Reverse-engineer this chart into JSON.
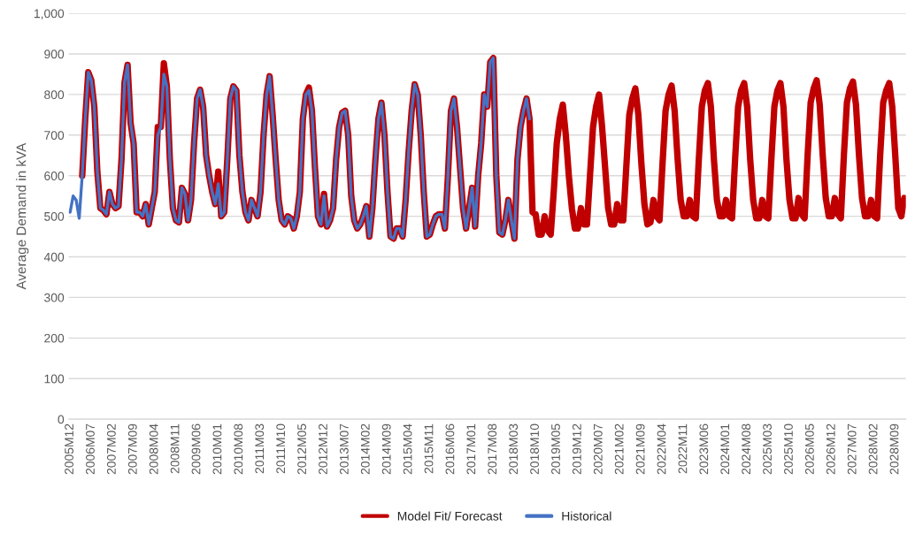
{
  "chart_data": {
    "type": "line",
    "ylabel": "Average Demand in kVA",
    "categories": [
      "2005M12",
      null,
      null,
      null,
      null,
      null,
      null,
      "2006M07",
      null,
      null,
      null,
      null,
      null,
      null,
      "2007M02",
      null,
      null,
      null,
      null,
      null,
      null,
      "2007M09",
      null,
      null,
      null,
      null,
      null,
      null,
      "2008M04",
      null,
      null,
      null,
      null,
      null,
      null,
      "2008M11",
      null,
      null,
      null,
      null,
      null,
      null,
      "2009M06",
      null,
      null,
      null,
      null,
      null,
      null,
      "2010M01",
      null,
      null,
      null,
      null,
      null,
      null,
      "2010M08",
      null,
      null,
      null,
      null,
      null,
      null,
      "2011M03",
      null,
      null,
      null,
      null,
      null,
      null,
      "2011M10",
      null,
      null,
      null,
      null,
      null,
      null,
      "2012M05",
      null,
      null,
      null,
      null,
      null,
      null,
      "2012M12",
      null,
      null,
      null,
      null,
      null,
      null,
      "2013M07",
      null,
      null,
      null,
      null,
      null,
      null,
      "2014M02",
      null,
      null,
      null,
      null,
      null,
      null,
      "2014M09",
      null,
      null,
      null,
      null,
      null,
      null,
      "2015M04",
      null,
      null,
      null,
      null,
      null,
      null,
      "2015M11",
      null,
      null,
      null,
      null,
      null,
      null,
      "2016M06",
      null,
      null,
      null,
      null,
      null,
      null,
      "2017M01",
      null,
      null,
      null,
      null,
      null,
      null,
      "2017M08",
      null,
      null,
      null,
      null,
      null,
      null,
      "2018M03",
      null,
      null,
      null,
      null,
      null,
      null,
      "2018M10",
      null,
      null,
      null,
      null,
      null,
      null,
      "2019M05",
      null,
      null,
      null,
      null,
      null,
      null,
      "2019M12",
      null,
      null,
      null,
      null,
      null,
      null,
      "2020M07",
      null,
      null,
      null,
      null,
      null,
      null,
      "2021M02",
      null,
      null,
      null,
      null,
      null,
      null,
      "2021M09",
      null,
      null,
      null,
      null,
      null,
      null,
      "2022M04",
      null,
      null,
      null,
      null,
      null,
      null,
      "2022M11",
      null,
      null,
      null,
      null,
      null,
      null,
      "2023M06",
      null,
      null,
      null,
      null,
      null,
      null,
      "2024M01",
      null,
      null,
      null,
      null,
      null,
      null,
      "2024M08",
      null,
      null,
      null,
      null,
      null,
      null,
      "2025M03",
      null,
      null,
      null,
      null,
      null,
      null,
      "2025M10",
      null,
      null,
      null,
      null,
      null,
      null,
      "2026M05",
      null,
      null,
      null,
      null,
      null,
      null,
      "2026M12",
      null,
      null,
      null,
      null,
      null,
      null,
      "2027M07",
      null,
      null,
      null,
      null,
      null,
      null,
      "2028M02",
      null,
      null,
      null,
      null,
      null,
      null,
      "2028M09",
      null,
      null,
      null
    ],
    "series": [
      {
        "name": "Model Fit/ Forecast",
        "color": "#c00000",
        "values": [
          null,
          null,
          null,
          null,
          600,
          740,
          855,
          835,
          770,
          610,
          520,
          515,
          505,
          560,
          530,
          520,
          525,
          640,
          830,
          873,
          730,
          680,
          510,
          510,
          500,
          530,
          480,
          520,
          560,
          720,
          720,
          877,
          820,
          640,
          520,
          490,
          485,
          570,
          555,
          490,
          540,
          680,
          790,
          812,
          770,
          650,
          600,
          560,
          530,
          610,
          500,
          510,
          640,
          790,
          820,
          810,
          650,
          560,
          510,
          490,
          540,
          520,
          500,
          560,
          700,
          800,
          845,
          750,
          640,
          540,
          490,
          480,
          500,
          495,
          470,
          500,
          560,
          740,
          800,
          817,
          760,
          620,
          500,
          480,
          555,
          475,
          490,
          520,
          640,
          720,
          755,
          760,
          700,
          550,
          490,
          470,
          480,
          500,
          525,
          450,
          520,
          640,
          740,
          780,
          700,
          560,
          450,
          445,
          470,
          470,
          450,
          540,
          660,
          760,
          825,
          800,
          700,
          560,
          450,
          455,
          480,
          500,
          505,
          505,
          470,
          600,
          760,
          790,
          720,
          620,
          520,
          470,
          520,
          570,
          475,
          600,
          680,
          800,
          770,
          880,
          890,
          600,
          460,
          455,
          490,
          540,
          490,
          445,
          640,
          720,
          760,
          790,
          740,
          510,
          505,
          455,
          455,
          500,
          465,
          455,
          560,
          680,
          740,
          775,
          700,
          600,
          520,
          470,
          470,
          520,
          480,
          480,
          600,
          720,
          770,
          800,
          720,
          620,
          520,
          480,
          480,
          530,
          490,
          490,
          620,
          750,
          790,
          815,
          750,
          630,
          530,
          480,
          485,
          540,
          500,
          490,
          630,
          760,
          800,
          822,
          760,
          640,
          540,
          500,
          500,
          540,
          500,
          495,
          640,
          770,
          810,
          828,
          770,
          640,
          540,
          500,
          500,
          540,
          500,
          495,
          640,
          770,
          810,
          828,
          770,
          640,
          540,
          495,
          495,
          540,
          500,
          495,
          640,
          770,
          810,
          828,
          770,
          640,
          540,
          495,
          495,
          545,
          505,
          495,
          650,
          780,
          815,
          835,
          775,
          650,
          545,
          500,
          500,
          545,
          505,
          495,
          650,
          780,
          815,
          832,
          775,
          650,
          545,
          500,
          500,
          540,
          500,
          495,
          650,
          780,
          810,
          828,
          770,
          650,
          520,
          500,
          545
        ]
      },
      {
        "name": "Historical",
        "color": "#4472c4",
        "values": [
          510,
          550,
          540,
          495,
          600,
          740,
          855,
          835,
          770,
          610,
          520,
          515,
          505,
          560,
          530,
          520,
          525,
          640,
          830,
          873,
          730,
          680,
          510,
          510,
          500,
          530,
          480,
          520,
          560,
          700,
          720,
          850,
          820,
          640,
          520,
          490,
          485,
          570,
          555,
          490,
          540,
          680,
          790,
          812,
          770,
          650,
          600,
          560,
          530,
          580,
          500,
          510,
          640,
          790,
          820,
          810,
          650,
          560,
          510,
          490,
          540,
          520,
          500,
          560,
          700,
          800,
          845,
          750,
          640,
          540,
          490,
          480,
          500,
          495,
          470,
          500,
          560,
          740,
          800,
          810,
          760,
          620,
          500,
          480,
          550,
          475,
          490,
          520,
          640,
          720,
          755,
          760,
          700,
          550,
          490,
          470,
          480,
          500,
          525,
          450,
          520,
          640,
          740,
          780,
          700,
          560,
          450,
          445,
          470,
          470,
          450,
          540,
          660,
          760,
          825,
          800,
          700,
          560,
          450,
          455,
          480,
          500,
          505,
          505,
          470,
          600,
          760,
          790,
          720,
          620,
          520,
          470,
          520,
          570,
          475,
          600,
          680,
          800,
          770,
          880,
          890,
          600,
          460,
          455,
          490,
          540,
          490,
          445,
          640,
          720,
          760,
          790,
          740,
          null,
          null,
          null,
          null,
          null,
          null,
          null,
          null,
          null,
          null,
          null,
          null,
          null,
          null,
          null,
          null,
          null,
          null,
          null,
          null,
          null,
          null,
          null,
          null,
          null,
          null,
          null,
          null,
          null,
          null,
          null,
          null,
          null,
          null,
          null,
          null,
          null,
          null,
          null,
          null,
          null,
          null,
          null,
          null,
          null,
          null,
          null,
          null,
          null,
          null,
          null,
          null,
          null,
          null,
          null,
          null,
          null,
          null,
          null,
          null,
          null,
          null,
          null,
          null,
          null,
          null,
          null,
          null,
          null,
          null,
          null,
          null,
          null,
          null,
          null,
          null,
          null,
          null,
          null,
          null,
          null,
          null,
          null,
          null,
          null,
          null,
          null,
          null,
          null,
          null,
          null,
          null,
          null,
          null,
          null,
          null,
          null,
          null,
          null,
          null,
          null,
          null,
          null,
          null,
          null,
          null,
          null,
          null,
          null,
          null,
          null,
          null,
          null,
          null,
          null,
          null,
          null,
          null,
          null,
          null,
          null,
          null,
          null,
          null
        ]
      }
    ],
    "ylim": [
      0,
      1000
    ],
    "yticks": [
      0,
      100,
      200,
      300,
      400,
      500,
      600,
      700,
      800,
      900,
      {
        "value": 1000,
        "label": "1,000"
      }
    ],
    "grid": "y",
    "legend": "bottom",
    "line_style": "solid",
    "marker": "none"
  }
}
